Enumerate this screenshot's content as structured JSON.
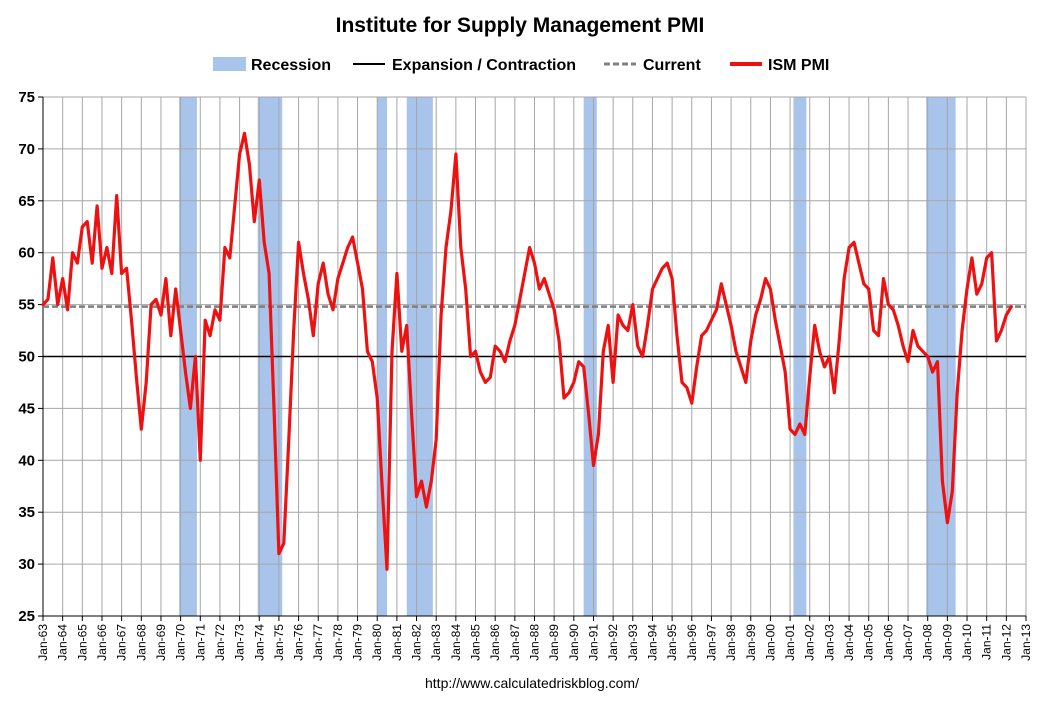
{
  "chart_data": {
    "type": "line",
    "title": "Institute for Supply Management PMI",
    "xlabel": "",
    "ylabel": "",
    "ylim": [
      25,
      75
    ],
    "yticks": [
      25,
      30,
      35,
      40,
      45,
      50,
      55,
      60,
      65,
      70,
      75
    ],
    "xticks": [
      "Jan-63",
      "Jan-64",
      "Jan-65",
      "Jan-66",
      "Jan-67",
      "Jan-68",
      "Jan-69",
      "Jan-70",
      "Jan-71",
      "Jan-72",
      "Jan-73",
      "Jan-74",
      "Jan-75",
      "Jan-76",
      "Jan-77",
      "Jan-78",
      "Jan-79",
      "Jan-80",
      "Jan-81",
      "Jan-82",
      "Jan-83",
      "Jan-84",
      "Jan-85",
      "Jan-86",
      "Jan-87",
      "Jan-88",
      "Jan-89",
      "Jan-90",
      "Jan-91",
      "Jan-92",
      "Jan-93",
      "Jan-94",
      "Jan-95",
      "Jan-96",
      "Jan-97",
      "Jan-98",
      "Jan-99",
      "Jan-00",
      "Jan-01",
      "Jan-02",
      "Jan-03",
      "Jan-04",
      "Jan-05",
      "Jan-06",
      "Jan-07",
      "Jan-08",
      "Jan-09",
      "Jan-10",
      "Jan-11",
      "Jan-12",
      "Jan-13"
    ],
    "grid": true,
    "legend_position": "top",
    "legend": [
      {
        "label": "Recession",
        "kind": "box",
        "color": "#a9c4eb"
      },
      {
        "label": "Expansion / Contraction",
        "kind": "line",
        "color": "#000000"
      },
      {
        "label": "Current",
        "kind": "dash",
        "color": "#808080"
      },
      {
        "label": "ISM PMI",
        "kind": "line",
        "color": "#ee1111"
      }
    ],
    "reference_lines": [
      {
        "name": "Expansion / Contraction",
        "y": 50,
        "color": "#000000",
        "style": "solid"
      },
      {
        "name": "Current",
        "y": 54.8,
        "color": "#808080",
        "style": "dashed"
      }
    ],
    "recessions": [
      {
        "start": 1969.92,
        "end": 1970.83
      },
      {
        "start": 1973.92,
        "end": 1975.17
      },
      {
        "start": 1980.0,
        "end": 1980.5
      },
      {
        "start": 1981.5,
        "end": 1982.83
      },
      {
        "start": 1990.5,
        "end": 1991.17
      },
      {
        "start": 2001.17,
        "end": 2001.83
      },
      {
        "start": 2007.92,
        "end": 2009.42
      }
    ],
    "series": [
      {
        "name": "ISM PMI",
        "color": "#ee1111",
        "points": [
          [
            1963.0,
            55.0
          ],
          [
            1963.25,
            55.5
          ],
          [
            1963.5,
            59.5
          ],
          [
            1963.75,
            55.0
          ],
          [
            1964.0,
            57.5
          ],
          [
            1964.25,
            54.5
          ],
          [
            1964.5,
            60.0
          ],
          [
            1964.75,
            59.0
          ],
          [
            1965.0,
            62.5
          ],
          [
            1965.25,
            63.0
          ],
          [
            1965.5,
            59.0
          ],
          [
            1965.75,
            64.5
          ],
          [
            1966.0,
            58.5
          ],
          [
            1966.25,
            60.5
          ],
          [
            1966.5,
            58.0
          ],
          [
            1966.75,
            65.5
          ],
          [
            1967.0,
            58.0
          ],
          [
            1967.25,
            58.5
          ],
          [
            1967.5,
            53.5
          ],
          [
            1967.75,
            48.0
          ],
          [
            1968.0,
            43.0
          ],
          [
            1968.25,
            47.5
          ],
          [
            1968.5,
            55.0
          ],
          [
            1968.75,
            55.5
          ],
          [
            1969.0,
            54.0
          ],
          [
            1969.25,
            57.5
          ],
          [
            1969.5,
            52.0
          ],
          [
            1969.75,
            56.5
          ],
          [
            1970.0,
            52.5
          ],
          [
            1970.25,
            48.5
          ],
          [
            1970.5,
            45.0
          ],
          [
            1970.75,
            50.0
          ],
          [
            1971.0,
            40.0
          ],
          [
            1971.25,
            53.5
          ],
          [
            1971.5,
            52.0
          ],
          [
            1971.75,
            54.5
          ],
          [
            1972.0,
            53.5
          ],
          [
            1972.25,
            60.5
          ],
          [
            1972.5,
            59.5
          ],
          [
            1972.75,
            64.5
          ],
          [
            1973.0,
            69.5
          ],
          [
            1973.25,
            71.5
          ],
          [
            1973.5,
            68.5
          ],
          [
            1973.75,
            63.0
          ],
          [
            1974.0,
            67.0
          ],
          [
            1974.25,
            61.0
          ],
          [
            1974.5,
            58.0
          ],
          [
            1974.75,
            45.0
          ],
          [
            1975.0,
            31.0
          ],
          [
            1975.25,
            32.0
          ],
          [
            1975.5,
            42.0
          ],
          [
            1975.75,
            52.5
          ],
          [
            1976.0,
            61.0
          ],
          [
            1976.25,
            58.0
          ],
          [
            1976.5,
            55.5
          ],
          [
            1976.75,
            52.0
          ],
          [
            1977.0,
            57.0
          ],
          [
            1977.25,
            59.0
          ],
          [
            1977.5,
            56.0
          ],
          [
            1977.75,
            54.5
          ],
          [
            1978.0,
            57.5
          ],
          [
            1978.25,
            59.0
          ],
          [
            1978.5,
            60.5
          ],
          [
            1978.75,
            61.5
          ],
          [
            1979.0,
            59.0
          ],
          [
            1979.25,
            56.5
          ],
          [
            1979.5,
            50.5
          ],
          [
            1979.75,
            49.5
          ],
          [
            1980.0,
            46.0
          ],
          [
            1980.25,
            37.5
          ],
          [
            1980.5,
            29.5
          ],
          [
            1980.75,
            50.5
          ],
          [
            1981.0,
            58.0
          ],
          [
            1981.25,
            50.5
          ],
          [
            1981.5,
            53.0
          ],
          [
            1981.75,
            44.5
          ],
          [
            1982.0,
            36.5
          ],
          [
            1982.25,
            38.0
          ],
          [
            1982.5,
            35.5
          ],
          [
            1982.75,
            38.0
          ],
          [
            1983.0,
            42.0
          ],
          [
            1983.25,
            54.0
          ],
          [
            1983.5,
            60.5
          ],
          [
            1983.75,
            64.0
          ],
          [
            1984.0,
            69.5
          ],
          [
            1984.25,
            60.5
          ],
          [
            1984.5,
            56.5
          ],
          [
            1984.75,
            50.0
          ],
          [
            1985.0,
            50.5
          ],
          [
            1985.25,
            48.5
          ],
          [
            1985.5,
            47.5
          ],
          [
            1985.75,
            48.0
          ],
          [
            1986.0,
            51.0
          ],
          [
            1986.25,
            50.5
          ],
          [
            1986.5,
            49.5
          ],
          [
            1986.75,
            51.5
          ],
          [
            1987.0,
            53.0
          ],
          [
            1987.25,
            55.5
          ],
          [
            1987.5,
            58.0
          ],
          [
            1987.75,
            60.5
          ],
          [
            1988.0,
            59.0
          ],
          [
            1988.25,
            56.5
          ],
          [
            1988.5,
            57.5
          ],
          [
            1988.75,
            56.0
          ],
          [
            1989.0,
            54.5
          ],
          [
            1989.25,
            51.5
          ],
          [
            1989.5,
            46.0
          ],
          [
            1989.75,
            46.5
          ],
          [
            1990.0,
            47.5
          ],
          [
            1990.25,
            49.5
          ],
          [
            1990.5,
            49.0
          ],
          [
            1990.75,
            44.5
          ],
          [
            1991.0,
            39.5
          ],
          [
            1991.25,
            42.5
          ],
          [
            1991.5,
            50.5
          ],
          [
            1991.75,
            53.0
          ],
          [
            1992.0,
            47.5
          ],
          [
            1992.25,
            54.0
          ],
          [
            1992.5,
            53.0
          ],
          [
            1992.75,
            52.5
          ],
          [
            1993.0,
            55.0
          ],
          [
            1993.25,
            51.0
          ],
          [
            1993.5,
            50.0
          ],
          [
            1993.75,
            53.0
          ],
          [
            1994.0,
            56.5
          ],
          [
            1994.25,
            57.5
          ],
          [
            1994.5,
            58.5
          ],
          [
            1994.75,
            59.0
          ],
          [
            1995.0,
            57.5
          ],
          [
            1995.25,
            52.0
          ],
          [
            1995.5,
            47.5
          ],
          [
            1995.75,
            47.0
          ],
          [
            1996.0,
            45.5
          ],
          [
            1996.25,
            49.0
          ],
          [
            1996.5,
            52.0
          ],
          [
            1996.75,
            52.5
          ],
          [
            1997.0,
            53.5
          ],
          [
            1997.25,
            54.5
          ],
          [
            1997.5,
            57.0
          ],
          [
            1997.75,
            55.0
          ],
          [
            1998.0,
            53.0
          ],
          [
            1998.25,
            50.5
          ],
          [
            1998.5,
            49.0
          ],
          [
            1998.75,
            47.5
          ],
          [
            1999.0,
            51.5
          ],
          [
            1999.25,
            54.0
          ],
          [
            1999.5,
            55.5
          ],
          [
            1999.75,
            57.5
          ],
          [
            2000.0,
            56.5
          ],
          [
            2000.25,
            53.5
          ],
          [
            2000.5,
            51.0
          ],
          [
            2000.75,
            48.5
          ],
          [
            2001.0,
            43.0
          ],
          [
            2001.25,
            42.5
          ],
          [
            2001.5,
            43.5
          ],
          [
            2001.75,
            42.5
          ],
          [
            2002.0,
            48.0
          ],
          [
            2002.25,
            53.0
          ],
          [
            2002.5,
            50.5
          ],
          [
            2002.75,
            49.0
          ],
          [
            2003.0,
            50.0
          ],
          [
            2003.25,
            46.5
          ],
          [
            2003.5,
            51.5
          ],
          [
            2003.75,
            57.5
          ],
          [
            2004.0,
            60.5
          ],
          [
            2004.25,
            61.0
          ],
          [
            2004.5,
            59.0
          ],
          [
            2004.75,
            57.0
          ],
          [
            2005.0,
            56.5
          ],
          [
            2005.25,
            52.5
          ],
          [
            2005.5,
            52.0
          ],
          [
            2005.75,
            57.5
          ],
          [
            2006.0,
            55.0
          ],
          [
            2006.25,
            54.5
          ],
          [
            2006.5,
            53.0
          ],
          [
            2006.75,
            51.0
          ],
          [
            2007.0,
            49.5
          ],
          [
            2007.25,
            52.5
          ],
          [
            2007.5,
            51.0
          ],
          [
            2007.75,
            50.5
          ],
          [
            2008.0,
            50.0
          ],
          [
            2008.25,
            48.5
          ],
          [
            2008.5,
            49.5
          ],
          [
            2008.75,
            38.0
          ],
          [
            2009.0,
            34.0
          ],
          [
            2009.25,
            37.0
          ],
          [
            2009.5,
            46.5
          ],
          [
            2009.75,
            52.5
          ],
          [
            2010.0,
            56.5
          ],
          [
            2010.25,
            59.5
          ],
          [
            2010.5,
            56.0
          ],
          [
            2010.75,
            57.0
          ],
          [
            2011.0,
            59.5
          ],
          [
            2011.25,
            60.0
          ],
          [
            2011.5,
            51.5
          ],
          [
            2011.75,
            52.5
          ],
          [
            2012.0,
            54.0
          ],
          [
            2012.25,
            54.8
          ]
        ]
      }
    ],
    "footer": "http://www.calculatedriskblog.com/"
  }
}
